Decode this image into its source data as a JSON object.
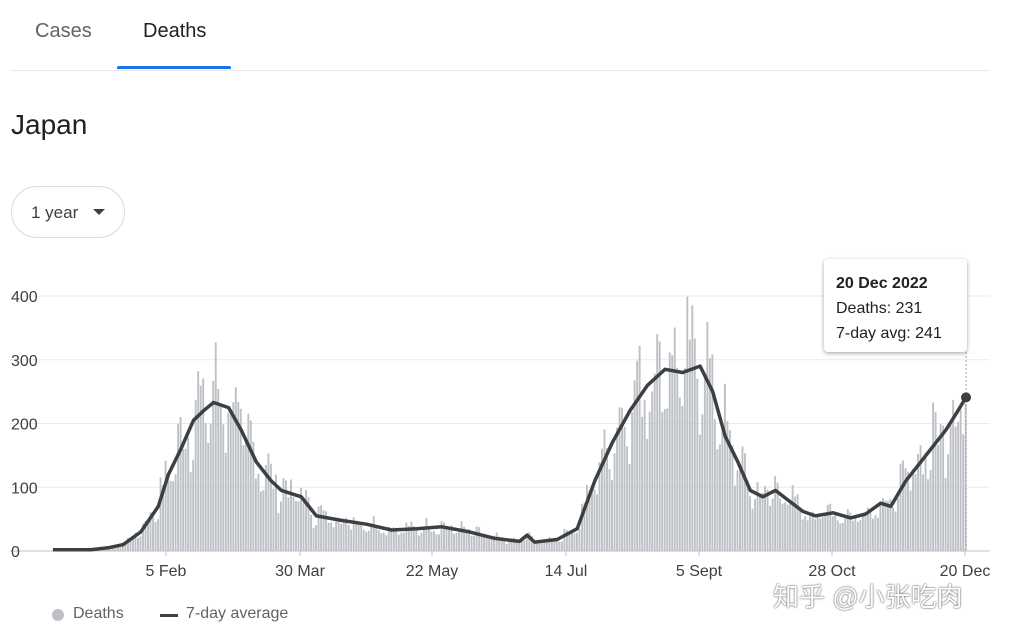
{
  "tabs": [
    {
      "label": "Cases",
      "selected": false
    },
    {
      "label": "Deaths",
      "selected": true
    }
  ],
  "location": "Japan",
  "range_selector": {
    "value": "1 year"
  },
  "tooltip": {
    "date": "20 Dec 2022",
    "deaths_text": "Deaths: 231",
    "avg_text": "7-day avg: 241"
  },
  "legend": {
    "bars_label": "Deaths",
    "line_label": "7-day average"
  },
  "watermark": "知乎 @小张吃肉",
  "colors": {
    "bars": "#bdc1c6",
    "line": "#3c4043",
    "accent": "#1a73e8",
    "grid": "#e8eaed"
  },
  "chart_data": {
    "type": "bar",
    "ylim": [
      0,
      400
    ],
    "yticks": [
      0,
      100,
      200,
      300,
      400
    ],
    "x_ticks": [
      "5 Feb",
      "30 Mar",
      "22 May",
      "14 Jul",
      "5 Sept",
      "28 Oct",
      "20 Dec"
    ],
    "x_range": [
      "2021-12-21",
      "2022-12-20"
    ],
    "series": [
      {
        "name": "7-day average",
        "type": "line",
        "points": [
          [
            "2021-12-21",
            2
          ],
          [
            "2022-01-05",
            2
          ],
          [
            "2022-01-12",
            5
          ],
          [
            "2022-01-18",
            10
          ],
          [
            "2022-01-25",
            30
          ],
          [
            "2022-02-01",
            70
          ],
          [
            "2022-02-05",
            120
          ],
          [
            "2022-02-10",
            160
          ],
          [
            "2022-02-15",
            205
          ],
          [
            "2022-02-19",
            220
          ],
          [
            "2022-02-23",
            233
          ],
          [
            "2022-03-01",
            225
          ],
          [
            "2022-03-06",
            190
          ],
          [
            "2022-03-12",
            140
          ],
          [
            "2022-03-18",
            110
          ],
          [
            "2022-03-22",
            95
          ],
          [
            "2022-03-30",
            85
          ],
          [
            "2022-04-05",
            55
          ],
          [
            "2022-04-15",
            48
          ],
          [
            "2022-04-25",
            42
          ],
          [
            "2022-05-05",
            33
          ],
          [
            "2022-05-15",
            35
          ],
          [
            "2022-05-25",
            38
          ],
          [
            "2022-06-05",
            30
          ],
          [
            "2022-06-15",
            20
          ],
          [
            "2022-06-25",
            15
          ],
          [
            "2022-06-28",
            25
          ],
          [
            "2022-07-01",
            14
          ],
          [
            "2022-07-10",
            18
          ],
          [
            "2022-07-18",
            35
          ],
          [
            "2022-07-25",
            110
          ],
          [
            "2022-08-01",
            170
          ],
          [
            "2022-08-08",
            220
          ],
          [
            "2022-08-15",
            260
          ],
          [
            "2022-08-22",
            285
          ],
          [
            "2022-08-29",
            280
          ],
          [
            "2022-09-05",
            290
          ],
          [
            "2022-09-10",
            250
          ],
          [
            "2022-09-15",
            180
          ],
          [
            "2022-09-20",
            140
          ],
          [
            "2022-09-25",
            95
          ],
          [
            "2022-09-30",
            85
          ],
          [
            "2022-10-05",
            95
          ],
          [
            "2022-10-10",
            80
          ],
          [
            "2022-10-16",
            62
          ],
          [
            "2022-10-21",
            55
          ],
          [
            "2022-10-28",
            60
          ],
          [
            "2022-11-04",
            52
          ],
          [
            "2022-11-10",
            58
          ],
          [
            "2022-11-16",
            75
          ],
          [
            "2022-11-20",
            70
          ],
          [
            "2022-11-26",
            110
          ],
          [
            "2022-12-02",
            140
          ],
          [
            "2022-12-07",
            165
          ],
          [
            "2022-12-12",
            190
          ],
          [
            "2022-12-16",
            215
          ],
          [
            "2022-12-20",
            241
          ]
        ]
      }
    ],
    "bars_series": "Deaths",
    "highlight": {
      "date": "2022-12-20",
      "deaths": 231,
      "avg": 241
    }
  }
}
